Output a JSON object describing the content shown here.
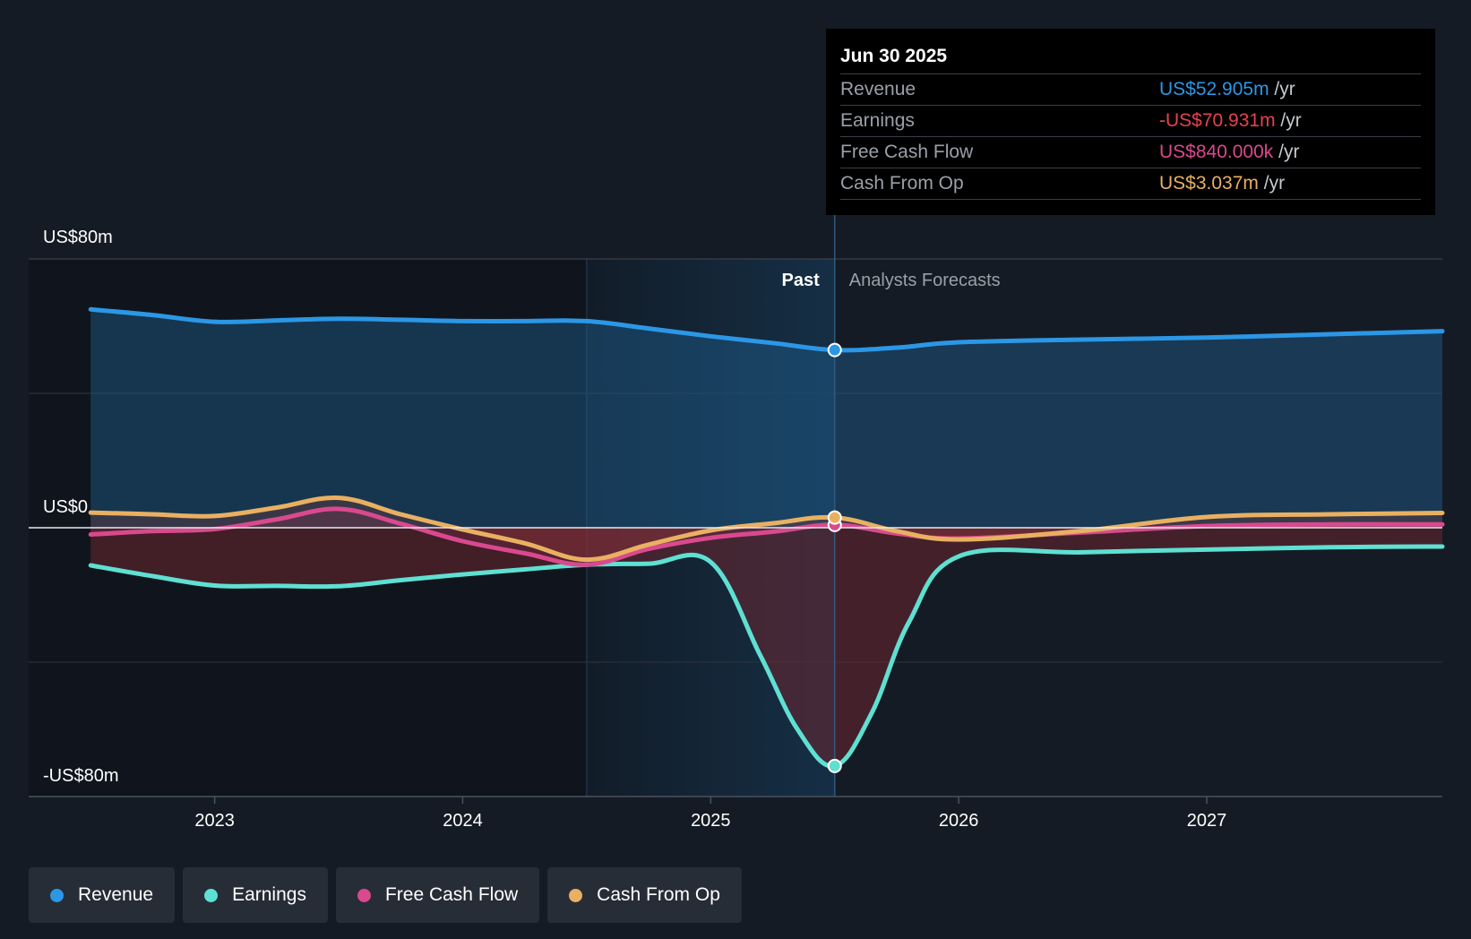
{
  "tooltip": {
    "date": "Jun 30 2025",
    "rows": [
      {
        "label": "Revenue",
        "value": "US$52.905m",
        "unit": "/yr",
        "color": "#2b97e6"
      },
      {
        "label": "Earnings",
        "value": "-US$70.931m",
        "unit": "/yr",
        "color": "#e8414e"
      },
      {
        "label": "Free Cash Flow",
        "value": "US$840.000k",
        "unit": "/yr",
        "color": "#d9498e"
      },
      {
        "label": "Cash From Op",
        "value": "US$3.037m",
        "unit": "/yr",
        "color": "#e9b061"
      }
    ]
  },
  "legend": [
    {
      "label": "Revenue",
      "color": "#2b97e6"
    },
    {
      "label": "Earnings",
      "color": "#5ee0d2"
    },
    {
      "label": "Free Cash Flow",
      "color": "#d9498e"
    },
    {
      "label": "Cash From Op",
      "color": "#e9b061"
    }
  ],
  "chart_data": {
    "type": "line",
    "y_labels": {
      "top": "US$80m",
      "zero": "US$0",
      "bottom": "-US$80m"
    },
    "ylim": [
      -80,
      80
    ],
    "xlim": [
      2022.25,
      2027.95
    ],
    "x_ticks": [
      2023,
      2024,
      2025,
      2026,
      2027
    ],
    "regions": {
      "past_label": "Past",
      "forecast_label": "Analysts Forecasts",
      "divider_x": 2025.5,
      "highlight_start_x": 2024.5
    },
    "grid": true,
    "series": [
      {
        "name": "Revenue",
        "color": "#2b97e6",
        "points": [
          [
            2022.5,
            65
          ],
          [
            2022.75,
            63.3
          ],
          [
            2023,
            61.3
          ],
          [
            2023.25,
            61.7
          ],
          [
            2023.5,
            62.2
          ],
          [
            2023.75,
            61.9
          ],
          [
            2024,
            61.5
          ],
          [
            2024.25,
            61.5
          ],
          [
            2024.5,
            61.5
          ],
          [
            2024.75,
            59.3
          ],
          [
            2025,
            57
          ],
          [
            2025.25,
            55
          ],
          [
            2025.5,
            52.9
          ],
          [
            2025.75,
            53.6
          ],
          [
            2026,
            55.2
          ],
          [
            2026.5,
            56
          ],
          [
            2027,
            56.6
          ],
          [
            2027.5,
            57.6
          ],
          [
            2027.95,
            58.5
          ]
        ]
      },
      {
        "name": "Earnings",
        "color": "#5ee0d2",
        "points": [
          [
            2022.5,
            -11.2
          ],
          [
            2022.75,
            -14.4
          ],
          [
            2023,
            -17.2
          ],
          [
            2023.25,
            -17.3
          ],
          [
            2023.5,
            -17.4
          ],
          [
            2023.75,
            -15.6
          ],
          [
            2024,
            -13.9
          ],
          [
            2024.25,
            -12.4
          ],
          [
            2024.5,
            -11
          ],
          [
            2024.75,
            -10.7
          ],
          [
            2025,
            -10.2
          ],
          [
            2025.2,
            -38
          ],
          [
            2025.35,
            -60
          ],
          [
            2025.5,
            -70.9
          ],
          [
            2025.65,
            -55
          ],
          [
            2025.8,
            -28
          ],
          [
            2026,
            -8.5
          ],
          [
            2026.5,
            -7.3
          ],
          [
            2027,
            -6.5
          ],
          [
            2027.5,
            -5.8
          ],
          [
            2027.95,
            -5.6
          ]
        ]
      },
      {
        "name": "Free Cash Flow",
        "color": "#d9498e",
        "points": [
          [
            2022.5,
            -2
          ],
          [
            2022.75,
            -1
          ],
          [
            2023,
            -0.4
          ],
          [
            2023.25,
            2.5
          ],
          [
            2023.5,
            5.6
          ],
          [
            2023.75,
            1.2
          ],
          [
            2024,
            -4
          ],
          [
            2024.25,
            -7.6
          ],
          [
            2024.5,
            -11
          ],
          [
            2024.75,
            -6.3
          ],
          [
            2025,
            -3
          ],
          [
            2025.25,
            -1.2
          ],
          [
            2025.5,
            0.84
          ],
          [
            2025.75,
            -1.7
          ],
          [
            2026,
            -3.2
          ],
          [
            2026.5,
            -1.4
          ],
          [
            2027,
            0.5
          ],
          [
            2027.5,
            1
          ],
          [
            2027.95,
            1
          ]
        ]
      },
      {
        "name": "Cash From Op",
        "color": "#e9b061",
        "points": [
          [
            2022.5,
            4.5
          ],
          [
            2022.75,
            4
          ],
          [
            2023,
            3.5
          ],
          [
            2023.25,
            6
          ],
          [
            2023.5,
            8.9
          ],
          [
            2023.75,
            4
          ],
          [
            2024,
            -0.5
          ],
          [
            2024.25,
            -4.6
          ],
          [
            2024.5,
            -9.5
          ],
          [
            2024.75,
            -5
          ],
          [
            2025,
            -0.8
          ],
          [
            2025.25,
            1.3
          ],
          [
            2025.5,
            3.04
          ],
          [
            2025.75,
            -1
          ],
          [
            2026,
            -3.5
          ],
          [
            2026.5,
            -0.9
          ],
          [
            2027,
            3.2
          ],
          [
            2027.5,
            4
          ],
          [
            2027.95,
            4.4
          ]
        ]
      }
    ]
  }
}
